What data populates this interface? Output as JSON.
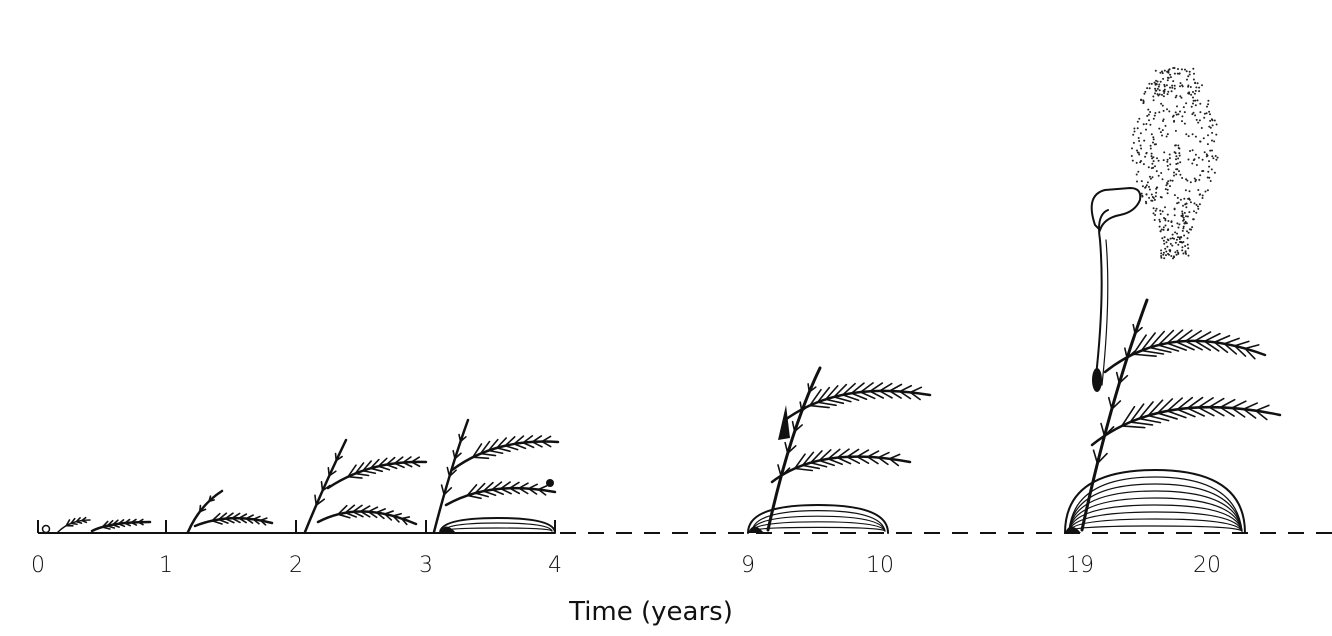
{
  "axis": {
    "title": "Time (years)",
    "ticks": [
      "0",
      "1",
      "2",
      "3",
      "4",
      "9",
      "10",
      "19",
      "20"
    ]
  }
}
